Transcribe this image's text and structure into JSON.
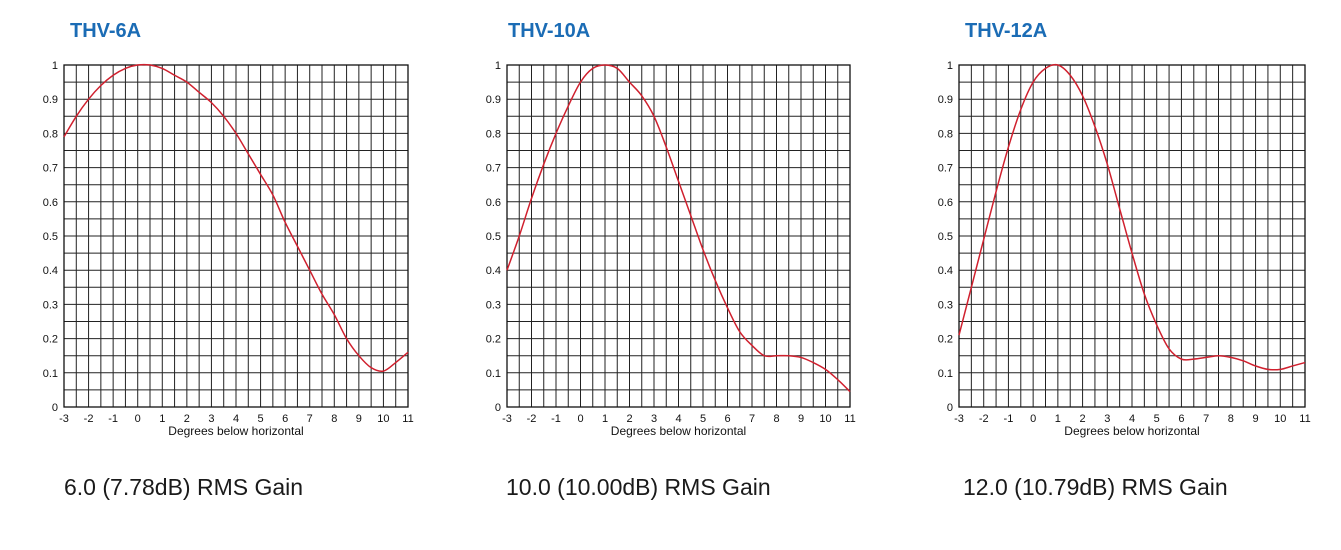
{
  "chart_data": [
    {
      "type": "line",
      "title": "THV-6A",
      "xlabel": "Degrees below horizontal",
      "ylabel": "",
      "xlim": [
        -3,
        11
      ],
      "ylim": [
        0,
        1
      ],
      "x_ticks": [
        "-3",
        "-2",
        "-1",
        "0",
        "1",
        "2",
        "3",
        "4",
        "5",
        "6",
        "7",
        "8",
        "9",
        "10",
        "11"
      ],
      "y_ticks": [
        "0",
        "0.1",
        "0.2",
        "0.3",
        "0.4",
        "0.5",
        "0.6",
        "0.7",
        "0.8",
        "0.9",
        "1"
      ],
      "grid": true,
      "line_color": "#d0202e",
      "series": [
        {
          "x": [
            -3,
            -2.5,
            -2,
            -1.5,
            -1,
            -0.5,
            0,
            0.5,
            1,
            1.5,
            2,
            2.5,
            3,
            3.5,
            4,
            4.5,
            5,
            5.5,
            6,
            6.5,
            7,
            7.5,
            8,
            8.5,
            9,
            9.5,
            10,
            10.5,
            11
          ],
          "y": [
            0.79,
            0.85,
            0.9,
            0.94,
            0.97,
            0.99,
            1.0,
            1.0,
            0.99,
            0.97,
            0.95,
            0.92,
            0.89,
            0.85,
            0.8,
            0.74,
            0.68,
            0.62,
            0.54,
            0.47,
            0.4,
            0.33,
            0.27,
            0.2,
            0.15,
            0.115,
            0.105,
            0.13,
            0.16
          ]
        }
      ],
      "gain_label": "6.0 (7.78dB) RMS Gain"
    },
    {
      "type": "line",
      "title": "THV-10A",
      "xlabel": "Degrees below horizontal",
      "ylabel": "",
      "xlim": [
        -3,
        11
      ],
      "ylim": [
        0,
        1
      ],
      "x_ticks": [
        "-3",
        "-2",
        "-1",
        "0",
        "1",
        "2",
        "3",
        "4",
        "5",
        "6",
        "7",
        "8",
        "9",
        "10",
        "11"
      ],
      "y_ticks": [
        "0",
        "0.1",
        "0.2",
        "0.3",
        "0.4",
        "0.5",
        "0.6",
        "0.7",
        "0.8",
        "0.9",
        "1"
      ],
      "grid": true,
      "line_color": "#d0202e",
      "series": [
        {
          "x": [
            -3,
            -2.5,
            -2,
            -1.5,
            -1,
            -0.5,
            0,
            0.5,
            1,
            1.5,
            2,
            2.5,
            3,
            3.5,
            4,
            4.5,
            5,
            5.5,
            6,
            6.5,
            7,
            7.5,
            8,
            8.5,
            9,
            9.5,
            10,
            10.5,
            11
          ],
          "y": [
            0.4,
            0.5,
            0.61,
            0.71,
            0.8,
            0.88,
            0.95,
            0.99,
            1.0,
            0.99,
            0.95,
            0.91,
            0.85,
            0.76,
            0.66,
            0.56,
            0.46,
            0.37,
            0.29,
            0.22,
            0.18,
            0.15,
            0.15,
            0.15,
            0.145,
            0.13,
            0.11,
            0.08,
            0.045
          ]
        }
      ],
      "gain_label": "10.0 (10.00dB) RMS Gain"
    },
    {
      "type": "line",
      "title": "THV-12A",
      "xlabel": "Degrees below horizontal",
      "ylabel": "",
      "xlim": [
        -3,
        11
      ],
      "ylim": [
        0,
        1
      ],
      "x_ticks": [
        "-3",
        "-2",
        "-1",
        "0",
        "1",
        "2",
        "3",
        "4",
        "5",
        "6",
        "7",
        "8",
        "9",
        "10",
        "11"
      ],
      "y_ticks": [
        "0",
        "0.1",
        "0.2",
        "0.3",
        "0.4",
        "0.5",
        "0.6",
        "0.7",
        "0.8",
        "0.9",
        "1"
      ],
      "grid": true,
      "line_color": "#d0202e",
      "series": [
        {
          "x": [
            -3,
            -2.5,
            -2,
            -1.5,
            -1,
            -0.5,
            0,
            0.5,
            1,
            1.5,
            2,
            2.5,
            3,
            3.5,
            4,
            4.5,
            5,
            5.5,
            6,
            6.5,
            7,
            7.5,
            8,
            8.5,
            9,
            9.5,
            10,
            10.5,
            11
          ],
          "y": [
            0.21,
            0.35,
            0.49,
            0.63,
            0.76,
            0.87,
            0.95,
            0.99,
            1.0,
            0.97,
            0.91,
            0.82,
            0.71,
            0.58,
            0.45,
            0.33,
            0.24,
            0.17,
            0.14,
            0.14,
            0.145,
            0.15,
            0.145,
            0.135,
            0.12,
            0.11,
            0.11,
            0.12,
            0.13
          ]
        }
      ],
      "gain_label": "12.0 (10.79dB) RMS Gain"
    }
  ]
}
